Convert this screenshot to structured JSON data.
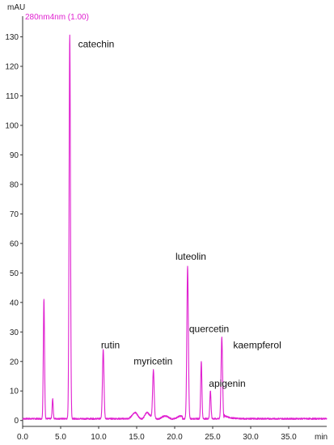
{
  "chart_data": {
    "type": "line",
    "y_unit": "mAU",
    "x_unit": "min",
    "legend": "280nm4nm (1.00)",
    "xlim": [
      0,
      40
    ],
    "ylim": [
      -2,
      137
    ],
    "x_ticks": [
      0,
      5,
      10,
      15,
      20,
      25,
      30,
      35
    ],
    "x_tick_labels": [
      "0.0",
      "5.0",
      "10.0",
      "15.0",
      "20.0",
      "25.0",
      "30.0",
      "35.0"
    ],
    "y_ticks": [
      0,
      10,
      20,
      30,
      40,
      50,
      60,
      70,
      80,
      90,
      100,
      110,
      120,
      130
    ],
    "y_tick_labels": [
      "0",
      "10",
      "20",
      "30",
      "40",
      "50",
      "60",
      "70",
      "80",
      "90",
      "100",
      "110",
      "120",
      "130"
    ],
    "grid": false,
    "colors": {
      "trace": "#e020d0",
      "axis": "#333333",
      "text": "#111111"
    },
    "peaks": [
      {
        "name": "",
        "rt": 2.8,
        "height": 40.5,
        "width": 0.08
      },
      {
        "name": "",
        "rt": 3.95,
        "height": 6.8,
        "width": 0.07
      },
      {
        "name": "catechin",
        "rt": 6.2,
        "height": 130,
        "width": 0.09
      },
      {
        "name": "rutin",
        "rt": 10.6,
        "height": 23.5,
        "width": 0.1
      },
      {
        "name": "",
        "rt": 14.8,
        "height": 1.2,
        "width": 0.3
      },
      {
        "name": "",
        "rt": 16.3,
        "height": 1.5,
        "width": 0.25
      },
      {
        "name": "myricetin",
        "rt": 17.2,
        "height": 16.0,
        "width": 0.1
      },
      {
        "name": "luteolin",
        "rt": 21.7,
        "height": 51.5,
        "width": 0.1
      },
      {
        "name": "quercetin",
        "rt": 23.5,
        "height": 19.5,
        "width": 0.08
      },
      {
        "name": "apigenin",
        "rt": 24.7,
        "height": 9.5,
        "width": 0.08
      },
      {
        "name": "kaempferol",
        "rt": 26.2,
        "height": 27.5,
        "width": 0.1
      }
    ],
    "annotations": [
      {
        "text": "catechin",
        "x": 7.3,
        "y": 126.5
      },
      {
        "text": "rutin",
        "x": 10.3,
        "y": 24.5
      },
      {
        "text": "myricetin",
        "x": 14.6,
        "y": 19.0
      },
      {
        "text": "luteolin",
        "x": 20.1,
        "y": 54.5
      },
      {
        "text": "quercetin",
        "x": 21.9,
        "y": 30.0
      },
      {
        "text": "apigenin",
        "x": 24.5,
        "y": 11.5
      },
      {
        "text": "kaempferol",
        "x": 27.7,
        "y": 24.5
      }
    ]
  }
}
